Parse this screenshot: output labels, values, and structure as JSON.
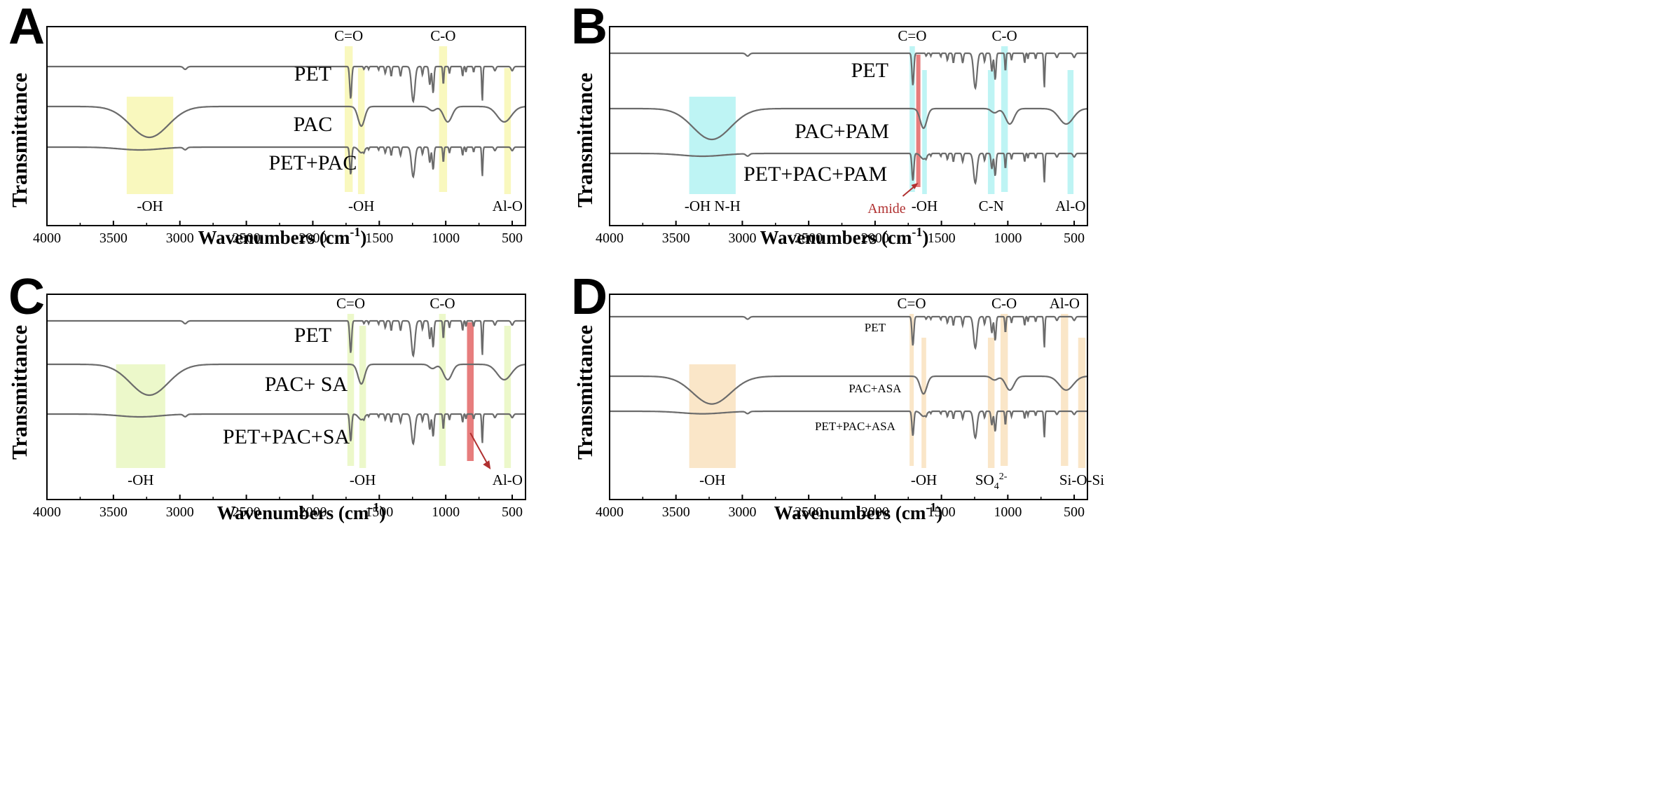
{
  "chart_data": [
    {
      "panel": "A",
      "type": "line",
      "xlabel": "Wavenumbers (cm-1)",
      "ylabel": "Transmittance",
      "xlim": [
        4000,
        400
      ],
      "xticks": [
        4000,
        3500,
        3000,
        2500,
        2000,
        1500,
        1000,
        500
      ],
      "series": [
        {
          "name": "PET",
          "label_x": 2000,
          "curve": "PET"
        },
        {
          "name": "PAC",
          "label_x": 2000,
          "curve": "PAC"
        },
        {
          "name": "PET+PAC",
          "label_x": 2000,
          "curve": "PET+PAC"
        }
      ],
      "bands": [
        {
          "label": "-OH",
          "x1": 3400,
          "x2": 3050,
          "color": "#f7f5a8",
          "label_pos": "bottom"
        },
        {
          "label": "C=O",
          "x1": 1760,
          "x2": 1700,
          "color": "#f7f5a8",
          "label_pos": "top"
        },
        {
          "label": "-OH",
          "x1": 1660,
          "x2": 1610,
          "color": "#f7f5a8",
          "label_pos": "bottom"
        },
        {
          "label": "C-O",
          "x1": 1050,
          "x2": 990,
          "color": "#f7f5a8",
          "label_pos": "top"
        },
        {
          "label": "Al-O",
          "x1": 560,
          "x2": 510,
          "color": "#f7f5a8",
          "label_pos": "bottom"
        }
      ]
    },
    {
      "panel": "B",
      "type": "line",
      "xlabel": "Wavenumbers (cm-1)",
      "ylabel": "Transmittance",
      "xlim": [
        4000,
        400
      ],
      "xticks": [
        4000,
        3500,
        3000,
        2500,
        2000,
        1500,
        1000,
        500
      ],
      "series": [
        {
          "name": "PET",
          "label_x": 2040,
          "curve": "PET"
        },
        {
          "name": "PAC+PAM",
          "label_x": 2250,
          "curve": "PAC"
        },
        {
          "name": "PET+PAC+PAM",
          "label_x": 2450,
          "curve": "PET+PAC"
        }
      ],
      "bands": [
        {
          "label": "-OH  N-H",
          "x1": 3400,
          "x2": 3050,
          "color": "#a8f0f0",
          "label_pos": "bottom"
        },
        {
          "label": "C=O",
          "x1": 1740,
          "x2": 1700,
          "color": "#a8f0f0",
          "label_pos": "top"
        },
        {
          "label": "",
          "x1": 1690,
          "x2": 1660,
          "color": "#e46f6f",
          "label_pos": "none"
        },
        {
          "label": "-OH",
          "x1": 1645,
          "x2": 1610,
          "color": "#a8f0f0",
          "label_pos": "bottom"
        },
        {
          "label": "C-N",
          "x1": 1150,
          "x2": 1100,
          "color": "#a8f0f0",
          "label_pos": "bottom"
        },
        {
          "label": "C-O",
          "x1": 1050,
          "x2": 1000,
          "color": "#a8f0f0",
          "label_pos": "top"
        },
        {
          "label": "Al-O",
          "x1": 550,
          "x2": 505,
          "color": "#a8f0f0",
          "label_pos": "bottom"
        }
      ],
      "annotation": {
        "label": "Amide",
        "x": 1675
      }
    },
    {
      "panel": "C",
      "type": "line",
      "xlabel": "Wavenumbers (cm-1)",
      "ylabel": "Transmittance",
      "xlim": [
        4000,
        400
      ],
      "xticks": [
        4000,
        3500,
        3000,
        2500,
        2000,
        1500,
        1000,
        500
      ],
      "series": [
        {
          "name": "PET",
          "label_x": 2000,
          "curve": "PET"
        },
        {
          "name": "PAC+ SA",
          "label_x": 2050,
          "curve": "PAC"
        },
        {
          "name": "PET+PAC+SA",
          "label_x": 2200,
          "curve": "PET+PAC"
        }
      ],
      "bands": [
        {
          "label": "-OH",
          "x1": 3480,
          "x2": 3110,
          "color": "#e6f6b8",
          "label_pos": "bottom"
        },
        {
          "label": "C=O",
          "x1": 1740,
          "x2": 1690,
          "color": "#e6f6b8",
          "label_pos": "top"
        },
        {
          "label": "-OH",
          "x1": 1650,
          "x2": 1600,
          "color": "#e6f6b8",
          "label_pos": "bottom"
        },
        {
          "label": "C-O",
          "x1": 1050,
          "x2": 1000,
          "color": "#e6f6b8",
          "label_pos": "top"
        },
        {
          "label": "",
          "x1": 840,
          "x2": 790,
          "color": "#e46f6f",
          "label_pos": "none"
        },
        {
          "label": "Al-O",
          "x1": 560,
          "x2": 510,
          "color": "#e6f6b8",
          "label_pos": "bottom"
        }
      ]
    },
    {
      "panel": "D",
      "type": "line",
      "xlabel": "Wavenumbers (cm-1)",
      "ylabel": "Transmittance",
      "xlim": [
        4000,
        400
      ],
      "xticks": [
        4000,
        3500,
        3000,
        2500,
        2000,
        1500,
        1000,
        500
      ],
      "series": [
        {
          "name": "PET",
          "label_x": 2000,
          "curve": "PET"
        },
        {
          "name": "PAC+ASA",
          "label_x": 2000,
          "curve": "PAC"
        },
        {
          "name": "PET+PAC+ASA",
          "label_x": 2150,
          "curve": "PET+PAC"
        }
      ],
      "bands": [
        {
          "label": "-OH",
          "x1": 3400,
          "x2": 3050,
          "color": "#f8ddb6",
          "label_pos": "bottom"
        },
        {
          "label": "C=O",
          "x1": 1740,
          "x2": 1710,
          "color": "#f8ddb6",
          "label_pos": "top"
        },
        {
          "label": "-OH",
          "x1": 1650,
          "x2": 1615,
          "color": "#f8ddb6",
          "label_pos": "bottom"
        },
        {
          "label": "SO42-",
          "x1": 1150,
          "x2": 1100,
          "color": "#f8ddb6",
          "label_pos": "bottom"
        },
        {
          "label": "C-O",
          "x1": 1055,
          "x2": 1000,
          "color": "#f8ddb6",
          "label_pos": "top"
        },
        {
          "label": "Al-O",
          "x1": 600,
          "x2": 545,
          "color": "#f8ddb6",
          "label_pos": "top"
        },
        {
          "label": "Si-O-Si",
          "x1": 470,
          "x2": 415,
          "color": "#f8ddb6",
          "label_pos": "bottom"
        }
      ]
    }
  ]
}
